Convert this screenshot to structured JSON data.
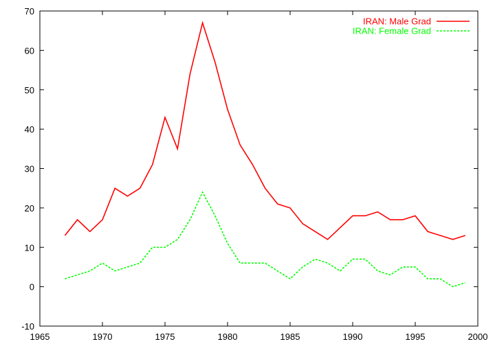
{
  "chart_data": {
    "type": "line",
    "title": "",
    "xlabel": "",
    "ylabel": "",
    "xlim": [
      1965,
      2000
    ],
    "ylim": [
      -10,
      70
    ],
    "x_ticks": [
      1965,
      1970,
      1975,
      1980,
      1985,
      1990,
      1995,
      2000
    ],
    "y_ticks": [
      -10,
      0,
      10,
      20,
      30,
      40,
      50,
      60,
      70
    ],
    "grid": false,
    "legend_position": "top-right",
    "x": [
      1967,
      1968,
      1969,
      1970,
      1971,
      1972,
      1973,
      1974,
      1975,
      1976,
      1977,
      1978,
      1979,
      1980,
      1981,
      1982,
      1983,
      1984,
      1985,
      1986,
      1987,
      1988,
      1989,
      1990,
      1991,
      1992,
      1993,
      1994,
      1995,
      1996,
      1997,
      1998,
      1999
    ],
    "series": [
      {
        "name": "IRAN: Male Grad",
        "color": "#ff0000",
        "style": "solid",
        "values": [
          13,
          17,
          14,
          17,
          25,
          23,
          25,
          31,
          43,
          35,
          54,
          67,
          57,
          45,
          36,
          31,
          25,
          21,
          20,
          16,
          14,
          12,
          15,
          18,
          18,
          19,
          17,
          17,
          18,
          14,
          13,
          12,
          13
        ]
      },
      {
        "name": "IRAN: Female Grad",
        "color": "#00ff00",
        "style": "dashed",
        "values": [
          2,
          3,
          4,
          6,
          4,
          5,
          6,
          10,
          10,
          12,
          17,
          24,
          18,
          11,
          6,
          6,
          6,
          4,
          2,
          5,
          7,
          6,
          4,
          7,
          7,
          4,
          3,
          5,
          5,
          2,
          2,
          0,
          1
        ]
      }
    ]
  }
}
